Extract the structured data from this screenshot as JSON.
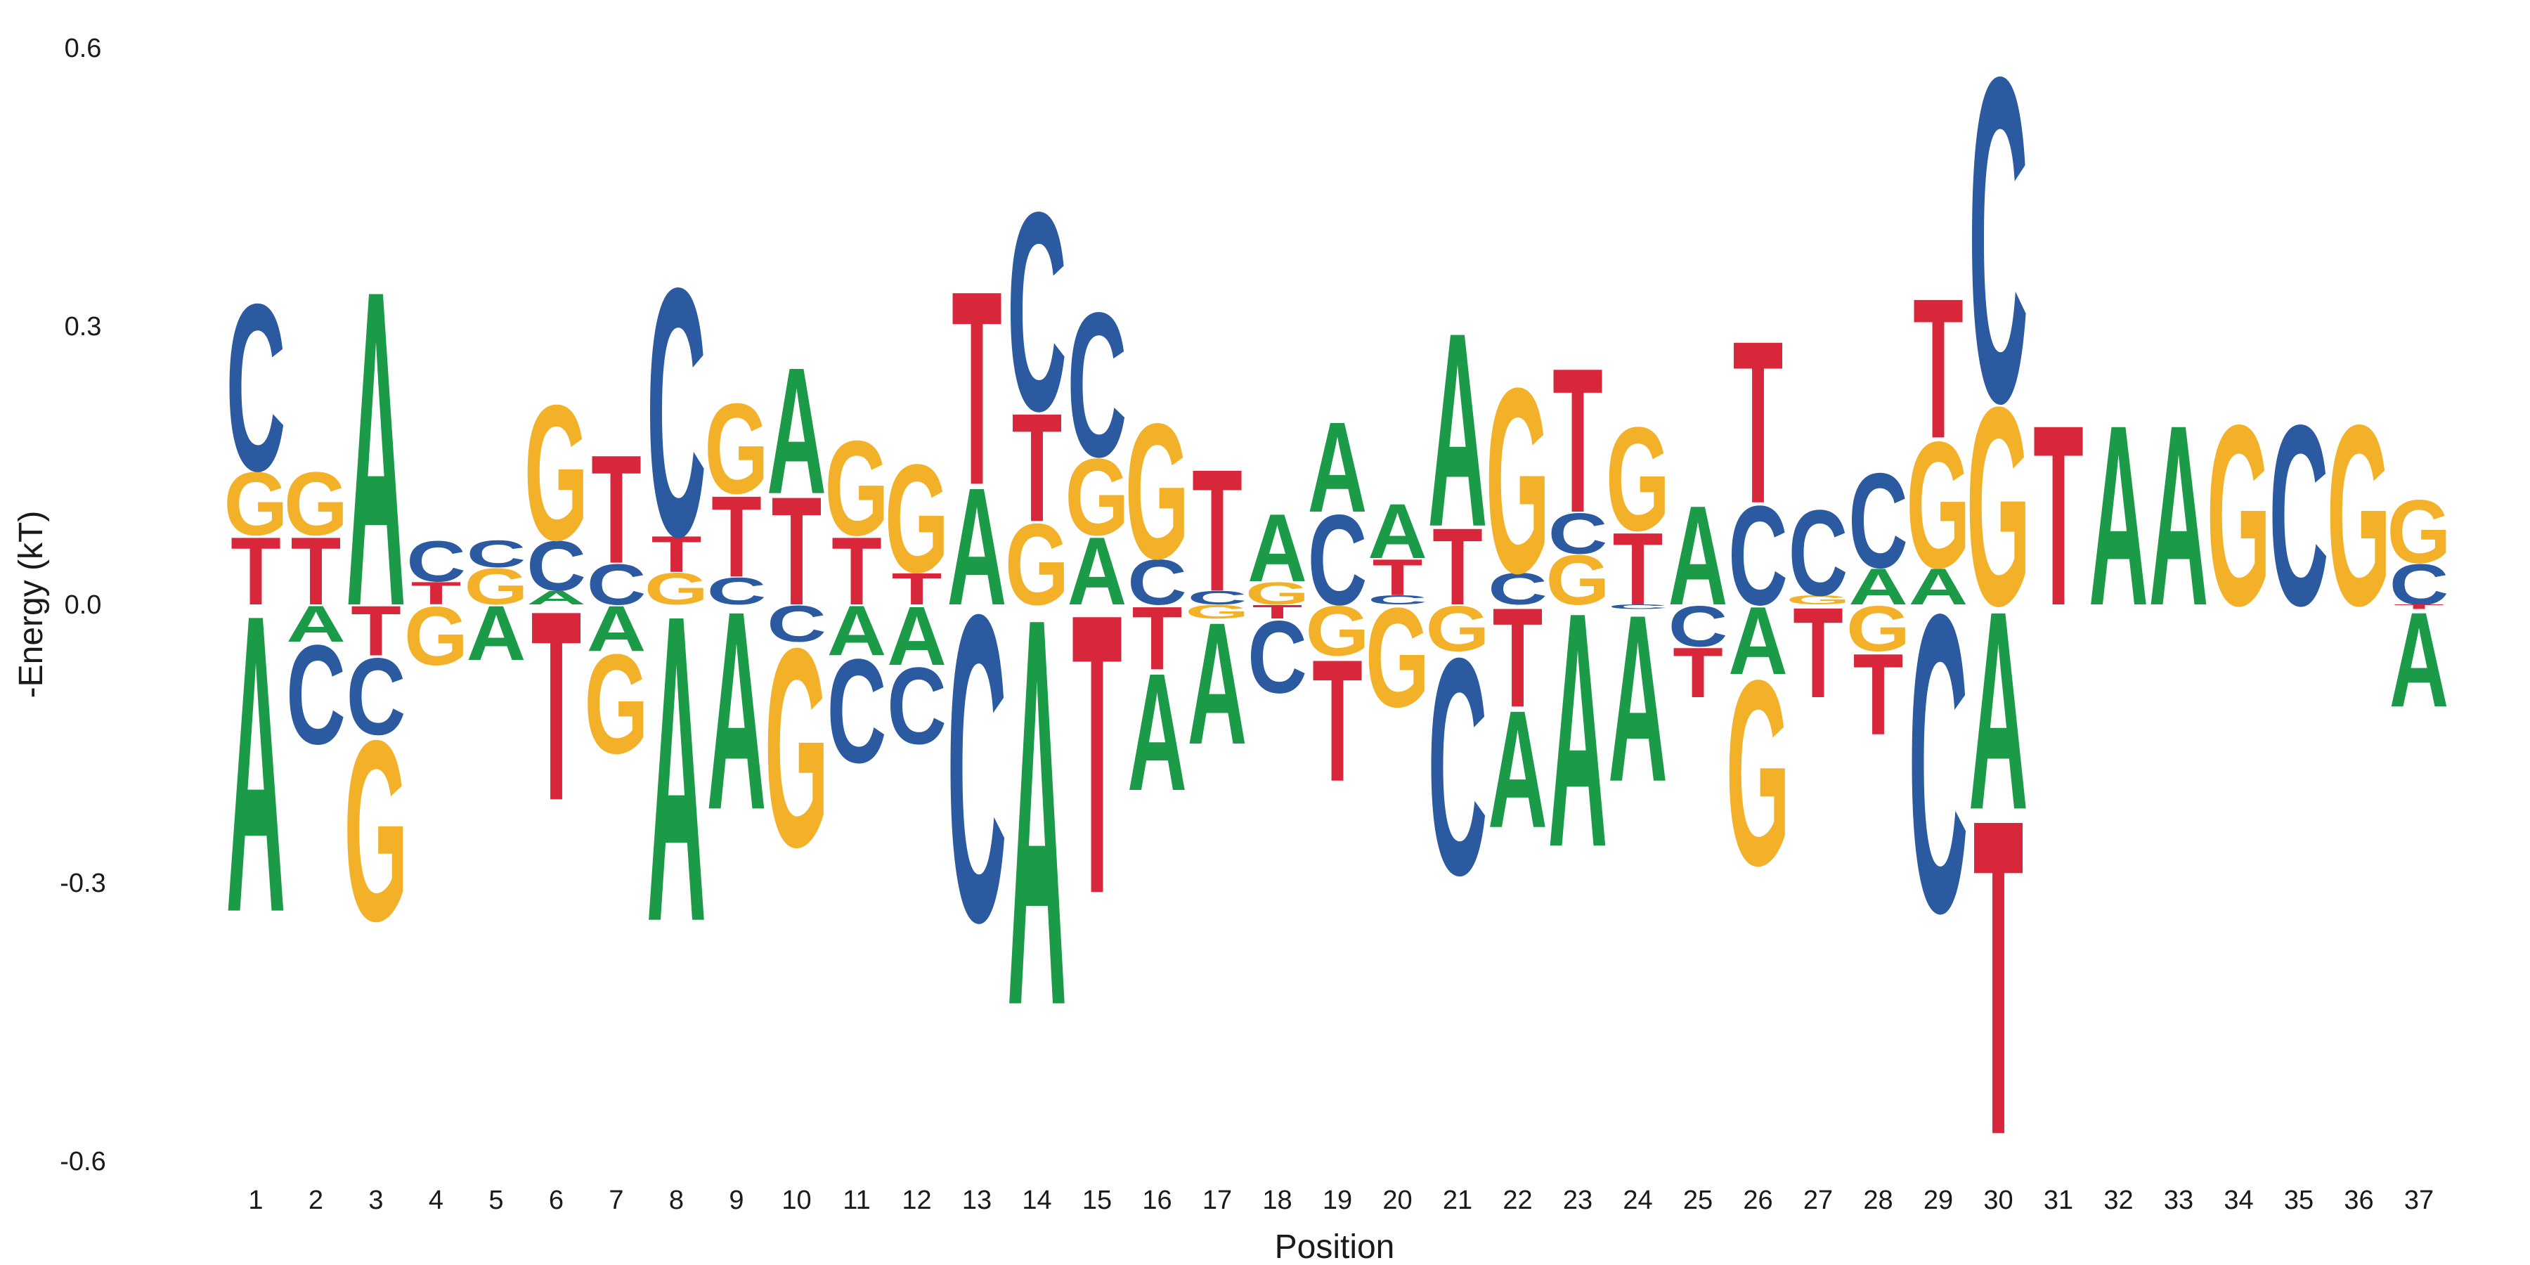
{
  "chart_data": {
    "type": "energy-logo",
    "xlabel": "Position",
    "ylabel": "-Energy (kT)",
    "ylim": [
      -0.6,
      0.6
    ],
    "yticks": [
      0.6,
      0.3,
      0.0,
      -0.3,
      -0.6
    ],
    "ytick_labels": [
      "0.6",
      "0.3",
      "0.0",
      "-0.3",
      "-0.6"
    ],
    "grid": false,
    "colors": {
      "A": "#1b9a47",
      "C": "#2b5aa1",
      "G": "#f2b128",
      "T": "#d8263a"
    },
    "positions": [
      {
        "x": "1",
        "A": -0.33,
        "C": 0.33,
        "G": 0.145,
        "T": 0.075
      },
      {
        "x": "2",
        "A": -0.04,
        "C": -0.15,
        "G": 0.145,
        "T": 0.075
      },
      {
        "x": "3",
        "A": 0.35,
        "C": -0.14,
        "G": -0.34,
        "T": -0.055
      },
      {
        "x": "4",
        "A": 0.0,
        "C": 0.07,
        "G": -0.065,
        "T": 0.025
      },
      {
        "x": "5",
        "A": -0.06,
        "C": 0.07,
        "G": 0.04,
        "T": 0.0
      },
      {
        "x": "6",
        "A": 0.015,
        "C": 0.07,
        "G": 0.22,
        "T": -0.21
      },
      {
        "x": "7",
        "A": -0.05,
        "C": 0.045,
        "G": -0.16,
        "T": 0.165
      },
      {
        "x": "8",
        "A": -0.34,
        "C": 0.35,
        "G": 0.035,
        "T": 0.075
      },
      {
        "x": "9",
        "A": -0.22,
        "C": 0.03,
        "G": 0.22,
        "T": 0.12
      },
      {
        "x": "10",
        "A": 0.26,
        "C": -0.04,
        "G": -0.26,
        "T": 0.12
      },
      {
        "x": "11",
        "A": -0.055,
        "C": -0.17,
        "G": 0.18,
        "T": 0.075
      },
      {
        "x": "12",
        "A": -0.065,
        "C": -0.15,
        "G": 0.155,
        "T": 0.035
      },
      {
        "x": "13",
        "A": 0.13,
        "C": -0.34,
        "G": 0.0,
        "T": 0.345
      },
      {
        "x": "14",
        "A": -0.43,
        "C": 0.43,
        "G": 0.09,
        "T": 0.21
      },
      {
        "x": "15",
        "A": 0.075,
        "C": 0.32,
        "G": 0.16,
        "T": -0.31
      },
      {
        "x": "16",
        "A": -0.2,
        "C": 0.05,
        "G": 0.2,
        "T": -0.07
      },
      {
        "x": "17",
        "A": -0.15,
        "C": 0.015,
        "G": -0.015,
        "T": 0.15
      },
      {
        "x": "18",
        "A": 0.1,
        "C": -0.095,
        "G": 0.025,
        "T": -0.015
      },
      {
        "x": "19",
        "A": 0.2,
        "C": 0.1,
        "G": -0.055,
        "T": -0.19
      },
      {
        "x": "20",
        "A": 0.11,
        "C": 0.01,
        "G": -0.11,
        "T": 0.05
      },
      {
        "x": "21",
        "A": 0.3,
        "C": -0.29,
        "G": -0.05,
        "T": 0.085
      },
      {
        "x": "22",
        "A": -0.24,
        "C": 0.035,
        "G": 0.24,
        "T": -0.11
      },
      {
        "x": "23",
        "A": -0.26,
        "C": 0.1,
        "G": 0.055,
        "T": 0.26
      },
      {
        "x": "24",
        "A": -0.19,
        "C": -0.005,
        "G": 0.195,
        "T": 0.08
      },
      {
        "x": "25",
        "A": 0.11,
        "C": -0.045,
        "G": 0.0,
        "T": -0.1
      },
      {
        "x": "26",
        "A": -0.075,
        "C": 0.11,
        "G": -0.28,
        "T": 0.29
      },
      {
        "x": "27",
        "A": 0.0,
        "C": 0.105,
        "G": 0.01,
        "T": -0.1
      },
      {
        "x": "28",
        "A": 0.04,
        "C": 0.145,
        "G": -0.05,
        "T": -0.14
      },
      {
        "x": "29",
        "A": 0.04,
        "C": -0.33,
        "G": 0.18,
        "T": 0.335
      },
      {
        "x": "30",
        "A": -0.22,
        "C": 0.58,
        "G": 0.22,
        "T": -0.57
      },
      {
        "x": "31",
        "A": 0.0,
        "C": 0.0,
        "G": 0.0,
        "T": 0.2
      },
      {
        "x": "32",
        "A": 0.2,
        "C": 0.0,
        "G": 0.0,
        "T": 0.0
      },
      {
        "x": "33",
        "A": 0.2,
        "C": 0.0,
        "G": 0.0,
        "T": 0.0
      },
      {
        "x": "34",
        "A": 0.0,
        "C": 0.0,
        "G": 0.2,
        "T": 0.0
      },
      {
        "x": "35",
        "A": 0.0,
        "C": 0.2,
        "G": 0.0,
        "T": 0.0
      },
      {
        "x": "36",
        "A": 0.0,
        "C": 0.0,
        "G": 0.2,
        "T": 0.0
      },
      {
        "x": "37",
        "A": -0.11,
        "C": 0.045,
        "G": 0.115,
        "T": -0.005
      }
    ]
  }
}
